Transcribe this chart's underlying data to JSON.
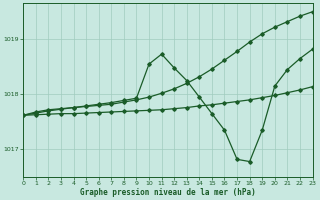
{
  "title": "Graphe pression niveau de la mer (hPa)",
  "bg_color": "#c8e8e0",
  "grid_color": "#a0ccbe",
  "line_color": "#1a5c28",
  "xlim": [
    0,
    23
  ],
  "ylim": [
    1016.5,
    1019.65
  ],
  "yticks": [
    1017,
    1018,
    1019
  ],
  "xticks": [
    0,
    1,
    2,
    3,
    4,
    5,
    6,
    7,
    8,
    9,
    10,
    11,
    12,
    13,
    14,
    15,
    16,
    17,
    18,
    19,
    20,
    21,
    22,
    23
  ],
  "s1_x": [
    0,
    1,
    2,
    3,
    4,
    5,
    6,
    7,
    8,
    9,
    10,
    11,
    12,
    13,
    14,
    15,
    16,
    17,
    18,
    19,
    20,
    21,
    22,
    23
  ],
  "s1_y": [
    1017.62,
    1017.63,
    1017.64,
    1017.65,
    1017.65,
    1017.66,
    1017.67,
    1017.68,
    1017.69,
    1017.7,
    1017.71,
    1017.72,
    1017.74,
    1017.76,
    1017.79,
    1017.81,
    1017.84,
    1017.87,
    1017.9,
    1017.94,
    1017.98,
    1018.03,
    1018.08,
    1018.14
  ],
  "s2_x": [
    0,
    1,
    2,
    3,
    4,
    5,
    6,
    7,
    8,
    9,
    10,
    11,
    12,
    13,
    14,
    15,
    16,
    17,
    18,
    19,
    20,
    21,
    22,
    23
  ],
  "s2_y": [
    1017.62,
    1017.66,
    1017.7,
    1017.73,
    1017.76,
    1017.79,
    1017.82,
    1017.85,
    1017.89,
    1017.93,
    1018.55,
    1018.73,
    1018.48,
    1018.25,
    1017.95,
    1017.65,
    1017.35,
    1016.82,
    1016.78,
    1017.35,
    1018.15,
    1018.45,
    1018.65,
    1018.82
  ],
  "s3_x": [
    0,
    1,
    2,
    3,
    4,
    5,
    6,
    7,
    8,
    9,
    10,
    11,
    12,
    13,
    14,
    15,
    16,
    17,
    18,
    19,
    20,
    21,
    22,
    23
  ],
  "s3_y": [
    1017.62,
    1017.68,
    1017.72,
    1017.74,
    1017.76,
    1017.78,
    1017.8,
    1017.82,
    1017.86,
    1017.9,
    1017.95,
    1018.02,
    1018.1,
    1018.2,
    1018.32,
    1018.46,
    1018.62,
    1018.78,
    1018.95,
    1019.1,
    1019.22,
    1019.32,
    1019.42,
    1019.5
  ]
}
